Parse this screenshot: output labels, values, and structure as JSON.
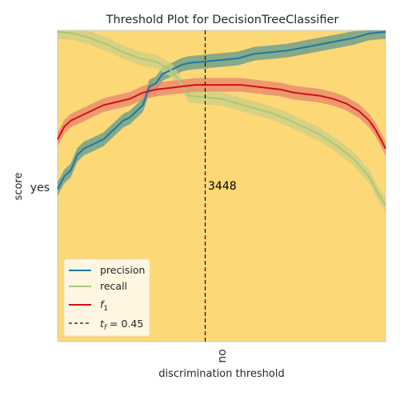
{
  "chart_data": {
    "type": "line",
    "title": "Threshold Plot for DecisionTreeClassifier",
    "xlabel": "discrimination threshold",
    "ylabel": "score",
    "x_tick_label": "no",
    "y_tick_label": "yes",
    "xlim": [
      0,
      1
    ],
    "ylim": [
      0,
      1
    ],
    "annotation": "3448",
    "threshold_line": {
      "x": 0.45,
      "style": "dashed",
      "color": "#111111"
    },
    "background_color": "#fdd877",
    "grid": false,
    "legend_position": "lower-left",
    "series": [
      {
        "name": "precision",
        "color": "#1f77a4",
        "band_color": "#5e9a8c",
        "points": [
          [
            0.0,
            0.49
          ],
          [
            0.02,
            0.53
          ],
          [
            0.04,
            0.55
          ],
          [
            0.06,
            0.6
          ],
          [
            0.08,
            0.62
          ],
          [
            0.1,
            0.63
          ],
          [
            0.12,
            0.64
          ],
          [
            0.14,
            0.65
          ],
          [
            0.16,
            0.67
          ],
          [
            0.18,
            0.69
          ],
          [
            0.2,
            0.71
          ],
          [
            0.22,
            0.72
          ],
          [
            0.24,
            0.74
          ],
          [
            0.26,
            0.76
          ],
          [
            0.28,
            0.82
          ],
          [
            0.3,
            0.83
          ],
          [
            0.32,
            0.86
          ],
          [
            0.34,
            0.87
          ],
          [
            0.36,
            0.88
          ],
          [
            0.38,
            0.89
          ],
          [
            0.4,
            0.895
          ],
          [
            0.45,
            0.9
          ],
          [
            0.5,
            0.905
          ],
          [
            0.55,
            0.91
          ],
          [
            0.6,
            0.925
          ],
          [
            0.65,
            0.93
          ],
          [
            0.7,
            0.935
          ],
          [
            0.75,
            0.945
          ],
          [
            0.8,
            0.955
          ],
          [
            0.85,
            0.965
          ],
          [
            0.9,
            0.975
          ],
          [
            0.95,
            0.99
          ],
          [
            1.0,
            0.995
          ]
        ]
      },
      {
        "name": "recall",
        "color": "#a5c97c",
        "band_color": "#cccf84",
        "points": [
          [
            0.0,
            0.995
          ],
          [
            0.05,
            0.99
          ],
          [
            0.1,
            0.975
          ],
          [
            0.15,
            0.955
          ],
          [
            0.2,
            0.93
          ],
          [
            0.25,
            0.91
          ],
          [
            0.3,
            0.9
          ],
          [
            0.35,
            0.87
          ],
          [
            0.4,
            0.79
          ],
          [
            0.45,
            0.785
          ],
          [
            0.5,
            0.78
          ],
          [
            0.55,
            0.765
          ],
          [
            0.6,
            0.75
          ],
          [
            0.65,
            0.735
          ],
          [
            0.7,
            0.715
          ],
          [
            0.75,
            0.69
          ],
          [
            0.8,
            0.665
          ],
          [
            0.85,
            0.63
          ],
          [
            0.9,
            0.59
          ],
          [
            0.95,
            0.53
          ],
          [
            0.98,
            0.47
          ],
          [
            1.0,
            0.44
          ]
        ]
      },
      {
        "name": "f1",
        "color": "#d40f0e",
        "band_color": "#e7846d",
        "points": [
          [
            0.0,
            0.65
          ],
          [
            0.02,
            0.69
          ],
          [
            0.04,
            0.71
          ],
          [
            0.06,
            0.72
          ],
          [
            0.1,
            0.74
          ],
          [
            0.14,
            0.76
          ],
          [
            0.18,
            0.77
          ],
          [
            0.22,
            0.78
          ],
          [
            0.26,
            0.8
          ],
          [
            0.3,
            0.81
          ],
          [
            0.34,
            0.815
          ],
          [
            0.38,
            0.82
          ],
          [
            0.42,
            0.825
          ],
          [
            0.46,
            0.825
          ],
          [
            0.5,
            0.825
          ],
          [
            0.56,
            0.825
          ],
          [
            0.6,
            0.82
          ],
          [
            0.64,
            0.815
          ],
          [
            0.68,
            0.81
          ],
          [
            0.72,
            0.8
          ],
          [
            0.76,
            0.795
          ],
          [
            0.8,
            0.79
          ],
          [
            0.84,
            0.78
          ],
          [
            0.88,
            0.765
          ],
          [
            0.92,
            0.74
          ],
          [
            0.95,
            0.71
          ],
          [
            0.97,
            0.68
          ],
          [
            0.985,
            0.65
          ],
          [
            1.0,
            0.62
          ]
        ]
      }
    ],
    "legend": [
      {
        "label": "precision",
        "color": "#1f77a4",
        "style": "solid"
      },
      {
        "label": "recall",
        "color": "#a5c97c",
        "style": "solid"
      },
      {
        "label": "f",
        "sub": "1",
        "color": "#d40f0e",
        "style": "solid"
      },
      {
        "label": "t",
        "sub": "f",
        "suffix": " = 0.45",
        "color": "#111111",
        "style": "dashed"
      }
    ]
  }
}
